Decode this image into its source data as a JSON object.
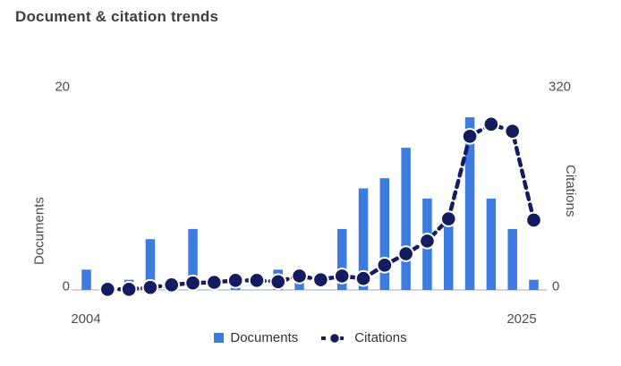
{
  "title": "Document & citation trends",
  "colors": {
    "bar": "#3c7bdf",
    "line": "#141b5e",
    "dot_halo": "#ffffff",
    "axis_line": "#cbd5ea",
    "title_text": "#3f3f3f",
    "axis_text": "#4d4d4d",
    "legend_text": "#333333"
  },
  "chart_data": {
    "type": "bar+line",
    "title": "Document & citation trends",
    "x": [
      2004,
      2005,
      2006,
      2007,
      2008,
      2009,
      2010,
      2011,
      2012,
      2013,
      2014,
      2015,
      2016,
      2017,
      2018,
      2019,
      2020,
      2021,
      2022,
      2023,
      2024,
      2025
    ],
    "series": [
      {
        "name": "Documents",
        "type": "bar",
        "axis": "left",
        "values": [
          2,
          0,
          1,
          5,
          0,
          6,
          0,
          1,
          0,
          2,
          2,
          0,
          6,
          10,
          11,
          14,
          9,
          7,
          17,
          9,
          6,
          1
        ]
      },
      {
        "name": "Citations",
        "type": "line",
        "axis": "right",
        "values": [
          null,
          1,
          1,
          4,
          8,
          11,
          12,
          15,
          15,
          13,
          22,
          16,
          22,
          18,
          39,
          57,
          77,
          112,
          242,
          261,
          250,
          110
        ]
      }
    ],
    "left_axis": {
      "label": "Documents",
      "min": 0,
      "max": 20,
      "min_label": "0",
      "max_label": "20"
    },
    "right_axis": {
      "label": "Citations",
      "min": 0,
      "max": 320,
      "min_label": "0",
      "max_label": "320"
    },
    "x_axis": {
      "first_label": "2004",
      "last_label": "2025"
    },
    "grid": false,
    "legend_position": "bottom",
    "legend": {
      "items": [
        {
          "label": "Documents",
          "marker": "square"
        },
        {
          "label": "Citations",
          "marker": "dash-dot"
        }
      ]
    }
  }
}
